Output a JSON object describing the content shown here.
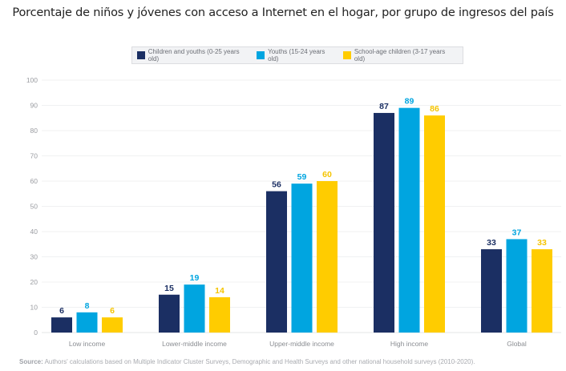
{
  "title": "Porcentaje de niños y jóvenes con acceso a Internet en el hogar, por grupo de ingresos del país",
  "source_label": "Source:",
  "source_text": " Authors' calculations based on Multiple Indicator Cluster Surveys, Demographic and Health Surveys and other national household surveys (2010-2020).",
  "chart_data": {
    "type": "bar",
    "title": "Porcentaje de niños y jóvenes con acceso a Internet en el hogar, por grupo de ingresos del país",
    "xlabel": "",
    "ylabel": "",
    "ylim": [
      0,
      100
    ],
    "yticks": [
      0,
      10,
      20,
      30,
      40,
      50,
      60,
      70,
      80,
      90,
      100
    ],
    "grid": true,
    "legend_position": "top-center",
    "categories": [
      "Low income",
      "Lower-middle income",
      "Upper-middle income",
      "High income",
      "Global"
    ],
    "series": [
      {
        "name": "Children and youths (0-25 years old)",
        "color": "#1b2f63",
        "values": [
          6,
          15,
          56,
          87,
          33
        ]
      },
      {
        "name": "Youths (15-24 years old)",
        "color": "#00a5e0",
        "values": [
          8,
          19,
          59,
          89,
          37
        ]
      },
      {
        "name": "School-age children (3-17 years old)",
        "color": "#ffcc00",
        "values": [
          6,
          14,
          60,
          86,
          33
        ]
      }
    ]
  }
}
